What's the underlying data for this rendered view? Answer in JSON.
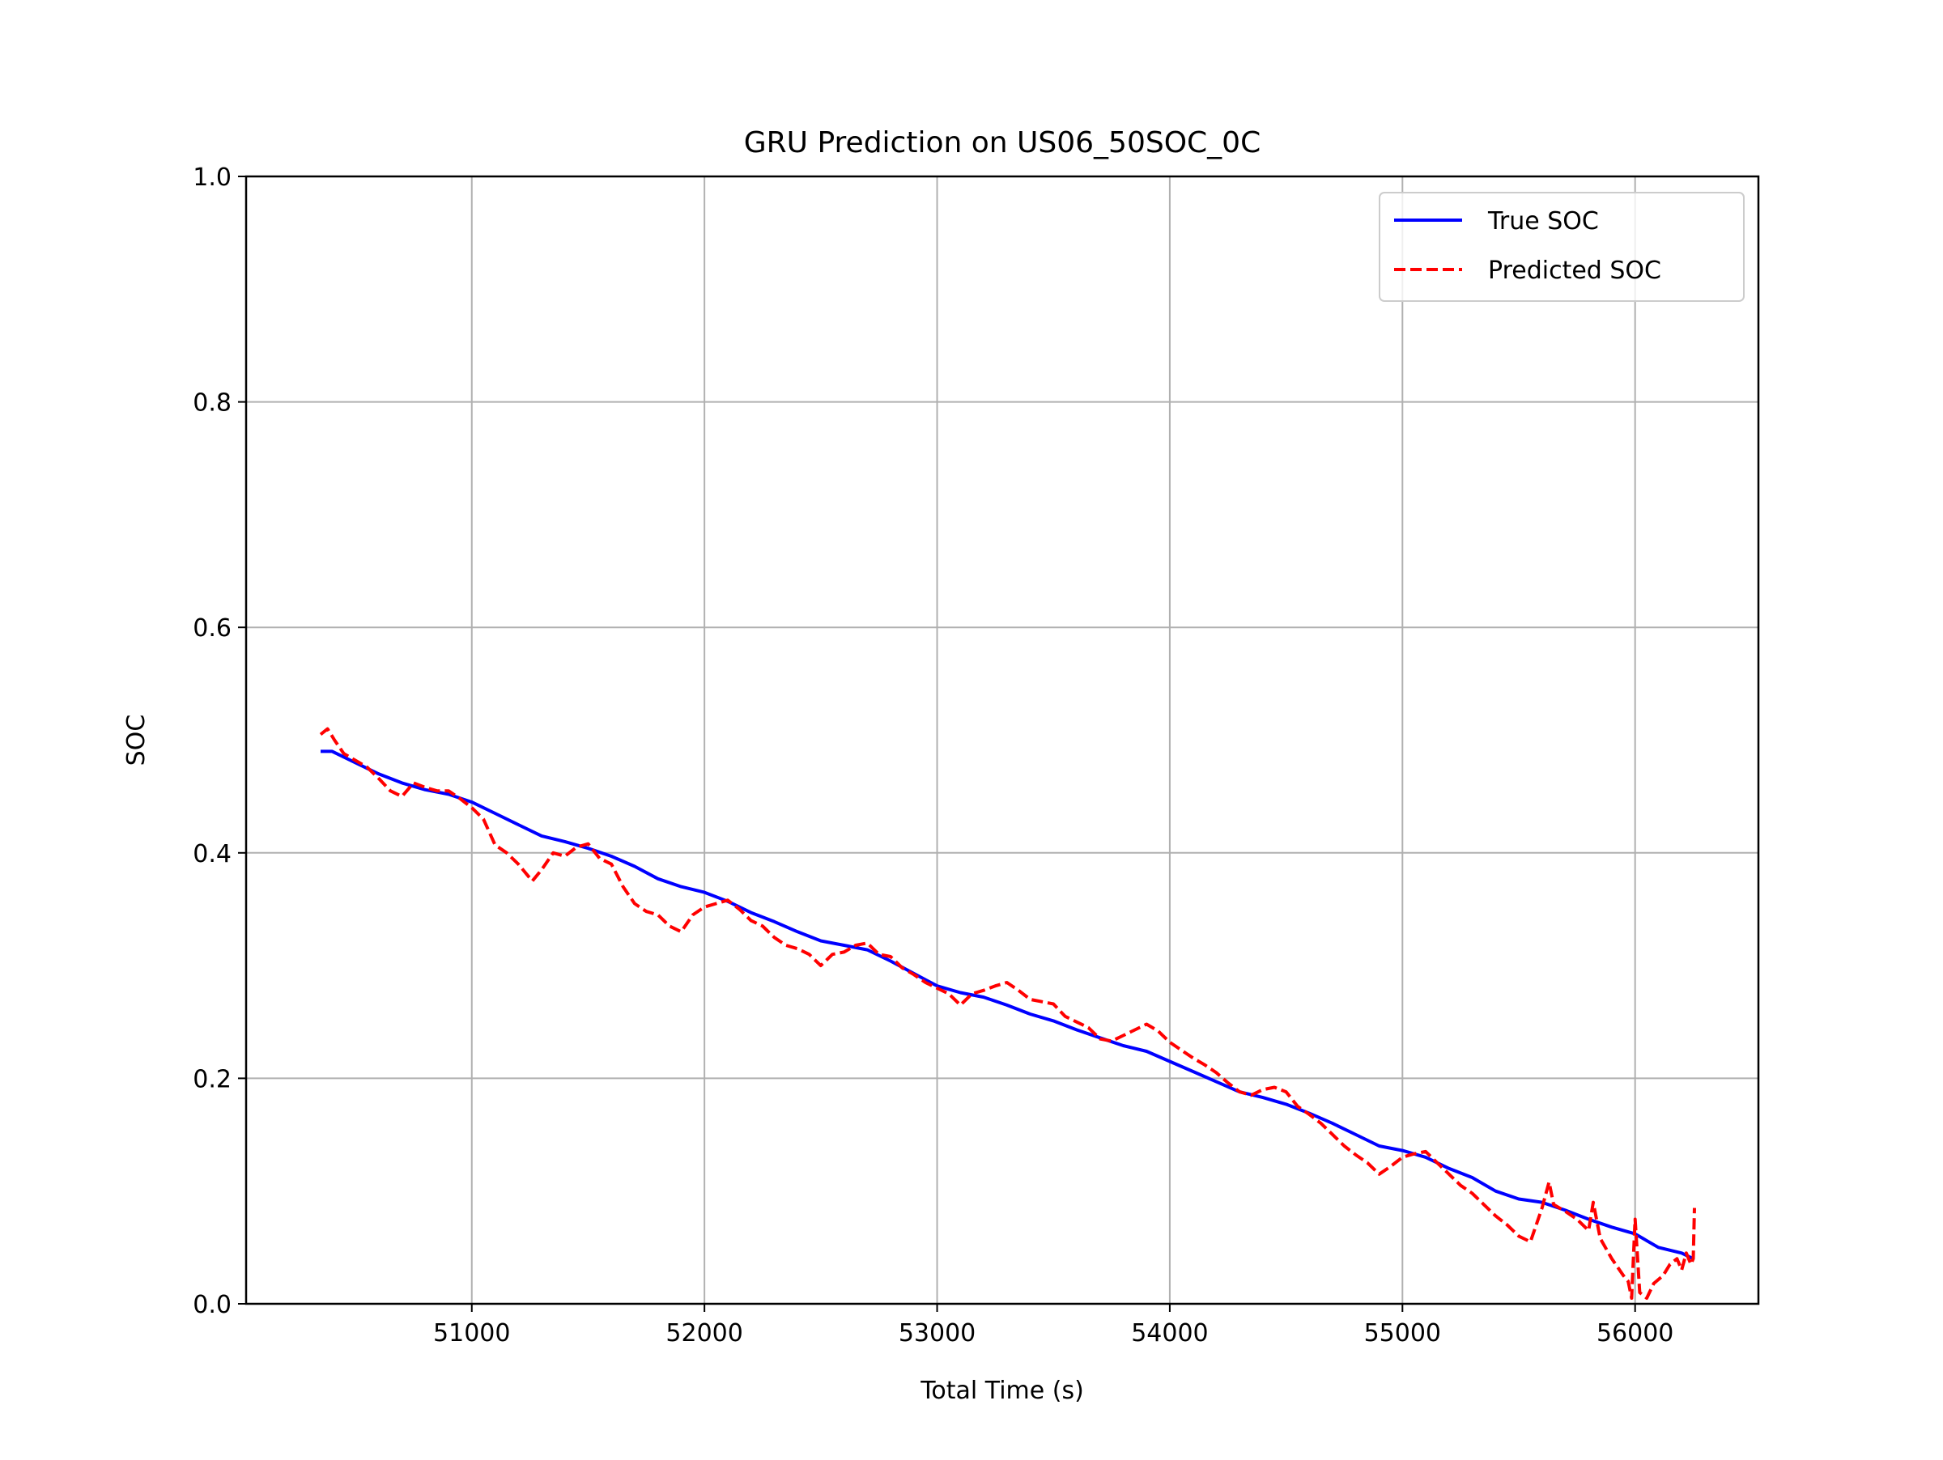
{
  "chart_data": {
    "type": "line",
    "title": "GRU Prediction on US06_50SOC_0C",
    "xlabel": "Total Time (s)",
    "ylabel": "SOC",
    "xlim": [
      50030,
      56530
    ],
    "ylim": [
      0.0,
      1.0
    ],
    "x_ticks": [
      51000,
      52000,
      53000,
      54000,
      55000,
      56000
    ],
    "y_ticks": [
      0.0,
      0.2,
      0.4,
      0.6,
      0.8,
      1.0
    ],
    "x_tick_labels": [
      "51000",
      "52000",
      "53000",
      "54000",
      "55000",
      "56000"
    ],
    "y_tick_labels": [
      "0.0",
      "0.2",
      "0.4",
      "0.6",
      "0.8",
      "1.0"
    ],
    "grid": true,
    "legend_position": "top-right",
    "legend": [
      "True SOC",
      "Predicted SOC"
    ],
    "series": [
      {
        "name": "True SOC",
        "color": "#0000ff",
        "style": "solid",
        "x": [
          50350,
          50400,
          50500,
          50600,
          50700,
          50800,
          50900,
          51000,
          51100,
          51200,
          51300,
          51400,
          51500,
          51600,
          51700,
          51800,
          51900,
          52000,
          52100,
          52200,
          52300,
          52400,
          52500,
          52600,
          52700,
          52800,
          52900,
          53000,
          53100,
          53200,
          53300,
          53400,
          53500,
          53600,
          53700,
          53800,
          53900,
          54000,
          54100,
          54200,
          54300,
          54400,
          54500,
          54600,
          54700,
          54800,
          54900,
          55000,
          55100,
          55200,
          55300,
          55400,
          55500,
          55600,
          55700,
          55800,
          55900,
          56000,
          56100,
          56200,
          56250
        ],
        "y": [
          0.49,
          0.49,
          0.48,
          0.47,
          0.462,
          0.456,
          0.452,
          0.445,
          0.435,
          0.425,
          0.415,
          0.41,
          0.404,
          0.397,
          0.388,
          0.377,
          0.37,
          0.365,
          0.357,
          0.347,
          0.339,
          0.33,
          0.322,
          0.318,
          0.314,
          0.304,
          0.293,
          0.282,
          0.276,
          0.272,
          0.265,
          0.257,
          0.251,
          0.243,
          0.236,
          0.229,
          0.224,
          0.215,
          0.206,
          0.197,
          0.188,
          0.183,
          0.177,
          0.169,
          0.16,
          0.15,
          0.14,
          0.136,
          0.13,
          0.12,
          0.112,
          0.1,
          0.093,
          0.09,
          0.083,
          0.075,
          0.068,
          0.062,
          0.05,
          0.045,
          0.04
        ]
      },
      {
        "name": "Predicted SOC",
        "color": "#ff0000",
        "style": "dashed",
        "x": [
          50350,
          50380,
          50410,
          50450,
          50500,
          50550,
          50600,
          50650,
          50700,
          50750,
          50800,
          50850,
          50900,
          50950,
          51000,
          51050,
          51100,
          51150,
          51200,
          51260,
          51300,
          51350,
          51400,
          51450,
          51500,
          51550,
          51600,
          51650,
          51700,
          51750,
          51800,
          51850,
          51900,
          51950,
          52000,
          52050,
          52100,
          52150,
          52200,
          52250,
          52300,
          52350,
          52400,
          52450,
          52500,
          52550,
          52600,
          52650,
          52700,
          52750,
          52800,
          52850,
          52900,
          52950,
          53000,
          53050,
          53100,
          53150,
          53200,
          53250,
          53300,
          53350,
          53400,
          53450,
          53500,
          53550,
          53600,
          53650,
          53700,
          53750,
          53800,
          53850,
          53900,
          53950,
          54000,
          54050,
          54100,
          54150,
          54200,
          54250,
          54300,
          54350,
          54400,
          54450,
          54500,
          54550,
          54600,
          54650,
          54700,
          54750,
          54800,
          54850,
          54900,
          54950,
          55000,
          55050,
          55100,
          55150,
          55200,
          55250,
          55300,
          55350,
          55400,
          55450,
          55500,
          55550,
          55600,
          55630,
          55650,
          55700,
          55750,
          55800,
          55820,
          55850,
          55900,
          55950,
          55970,
          55985,
          56000,
          56020,
          56050,
          56080,
          56120,
          56150,
          56180,
          56200,
          56220,
          56240,
          56250,
          56255
        ],
        "y": [
          0.505,
          0.51,
          0.5,
          0.488,
          0.482,
          0.476,
          0.466,
          0.455,
          0.45,
          0.462,
          0.458,
          0.455,
          0.455,
          0.448,
          0.44,
          0.43,
          0.407,
          0.4,
          0.39,
          0.375,
          0.385,
          0.4,
          0.397,
          0.405,
          0.408,
          0.395,
          0.39,
          0.37,
          0.355,
          0.348,
          0.345,
          0.335,
          0.33,
          0.345,
          0.352,
          0.355,
          0.358,
          0.35,
          0.34,
          0.335,
          0.325,
          0.318,
          0.315,
          0.31,
          0.3,
          0.31,
          0.312,
          0.318,
          0.32,
          0.31,
          0.308,
          0.298,
          0.292,
          0.285,
          0.28,
          0.275,
          0.265,
          0.275,
          0.278,
          0.282,
          0.285,
          0.278,
          0.27,
          0.268,
          0.266,
          0.255,
          0.25,
          0.245,
          0.235,
          0.233,
          0.238,
          0.243,
          0.248,
          0.242,
          0.232,
          0.225,
          0.218,
          0.212,
          0.205,
          0.196,
          0.188,
          0.185,
          0.19,
          0.192,
          0.188,
          0.175,
          0.168,
          0.16,
          0.15,
          0.14,
          0.132,
          0.125,
          0.115,
          0.122,
          0.13,
          0.133,
          0.135,
          0.125,
          0.115,
          0.105,
          0.098,
          0.088,
          0.078,
          0.07,
          0.06,
          0.055,
          0.085,
          0.108,
          0.088,
          0.082,
          0.075,
          0.065,
          0.09,
          0.058,
          0.04,
          0.025,
          0.02,
          0.005,
          0.075,
          0.01,
          0.005,
          0.018,
          0.025,
          0.035,
          0.04,
          0.03,
          0.045,
          0.035,
          0.04,
          0.085
        ]
      }
    ]
  }
}
